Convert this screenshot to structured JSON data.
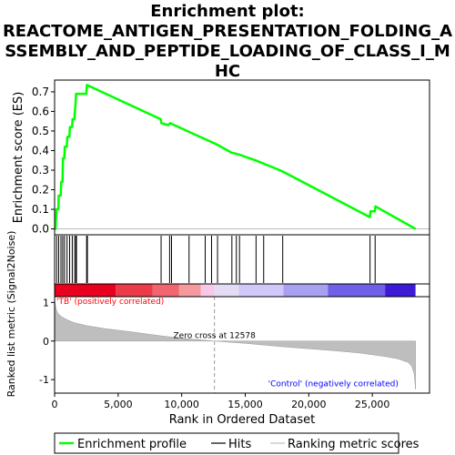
{
  "title_lines": [
    "Enrichment plot:",
    "REACTOME_ANTIGEN_PRESENTATION_FOLDING_A",
    "SSEMBLY_AND_PEPTIDE_LOADING_OF_CLASS_I_M",
    "HC"
  ],
  "colors": {
    "es_line": "#00ff00",
    "hit": "#000000",
    "metric_fill": "#bebebe",
    "pos_label": "#ff0000",
    "neg_label": "#0000ff"
  },
  "chart_data": [
    {
      "type": "line",
      "ylabel": "Enrichment score (ES)",
      "ylim": [
        -0.03,
        0.76
      ],
      "xlim": [
        0,
        29500
      ],
      "yticks": [
        "0.0",
        "0.1",
        "0.2",
        "0.3",
        "0.4",
        "0.5",
        "0.6",
        "0.7"
      ],
      "series": [
        {
          "name": "Enrichment profile",
          "x": [
            0,
            80,
            140,
            300,
            320,
            480,
            520,
            620,
            660,
            760,
            800,
            960,
            1000,
            1170,
            1200,
            1380,
            1410,
            1560,
            1600,
            1650,
            1690,
            2500,
            2540,
            8350,
            8400,
            8950,
            9100,
            9250,
            10600,
            11800,
            12300,
            12800,
            13900,
            14200,
            14500,
            15800,
            16400,
            17900,
            24800,
            24850,
            25200,
            25250,
            28400
          ],
          "y": [
            0.0,
            0.0,
            0.1,
            0.1,
            0.17,
            0.17,
            0.24,
            0.24,
            0.36,
            0.36,
            0.42,
            0.42,
            0.47,
            0.47,
            0.52,
            0.52,
            0.56,
            0.56,
            0.6,
            0.64,
            0.69,
            0.69,
            0.735,
            0.56,
            0.54,
            0.53,
            0.54,
            0.535,
            0.495,
            0.46,
            0.445,
            0.43,
            0.39,
            0.385,
            0.38,
            0.35,
            0.335,
            0.295,
            0.06,
            0.09,
            0.09,
            0.115,
            0.0
          ]
        }
      ],
      "hits": [
        160,
        320,
        500,
        640,
        780,
        980,
        1180,
        1390,
        1580,
        1680,
        1720,
        2520,
        2580,
        8380,
        9050,
        9200,
        10580,
        11850,
        12350,
        12820,
        13950,
        14300,
        14550,
        15850,
        16450,
        17950,
        24820,
        25220
      ]
    },
    {
      "type": "area",
      "ylabel": "Ranked list metric (Signal2Noise)",
      "xlabel": "Rank in Ordered Dataset",
      "ylim": [
        -1.35,
        1.15
      ],
      "xlim": [
        0,
        29500
      ],
      "xticks": [
        0,
        5000,
        10000,
        15000,
        20000,
        25000
      ],
      "xtick_labels": [
        "0",
        "5,000",
        "10,000",
        "15,000",
        "20,000",
        "25,000"
      ],
      "yticks": [
        "-1",
        "0",
        "1"
      ],
      "metric_x": [
        0,
        50,
        150,
        300,
        600,
        1000,
        1500,
        2500,
        4000,
        6000,
        8000,
        10000,
        12578,
        15000,
        18000,
        20000,
        22000,
        24000,
        26000,
        27000,
        27800,
        28100,
        28300,
        28400
      ],
      "metric_y": [
        1.1,
        0.95,
        0.8,
        0.7,
        0.62,
        0.55,
        0.48,
        0.4,
        0.32,
        0.24,
        0.15,
        0.07,
        0.0,
        -0.06,
        -0.15,
        -0.2,
        -0.25,
        -0.31,
        -0.4,
        -0.46,
        -0.55,
        -0.65,
        -0.85,
        -1.25
      ],
      "zero_cross_rank": 12578,
      "annotations": {
        "zero_cross": "Zero cross at 12578",
        "pos": "'TB' (positively correlated)",
        "neg": "'Control' (negatively correlated)"
      }
    }
  ],
  "heatmap_colors": [
    "#e8001e",
    "#ec3b48",
    "#f06670",
    "#f49a9e",
    "#f8c8e8",
    "#e4dcf4",
    "#d0c8f8",
    "#a8a0f0",
    "#7060e8",
    "#3c1ad6",
    "#2a00c8"
  ],
  "heatmap_bounds": [
    0,
    4800,
    7700,
    9800,
    11500,
    12578,
    14500,
    18000,
    21500,
    26000,
    28400
  ],
  "legend": {
    "items": [
      "Enrichment profile",
      "Hits",
      "Ranking metric scores"
    ]
  }
}
